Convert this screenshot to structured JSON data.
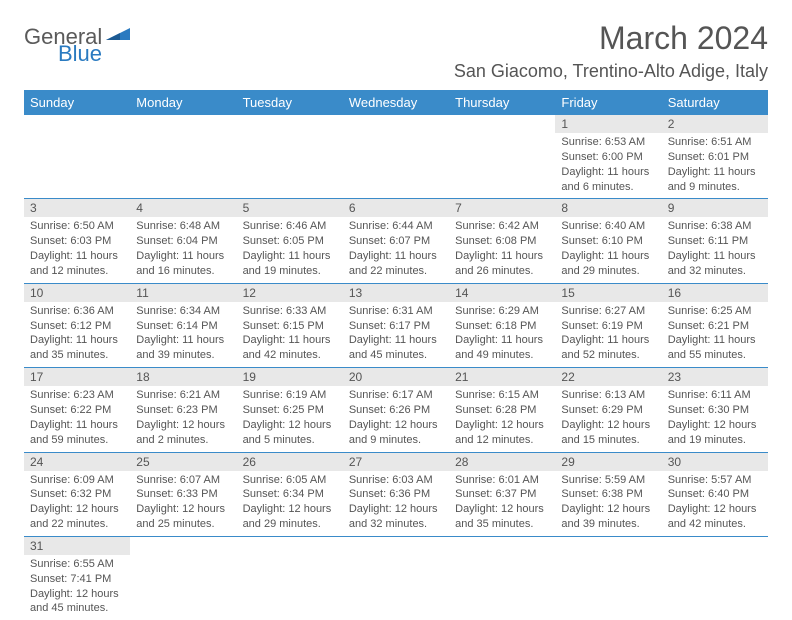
{
  "brand": {
    "general": "General",
    "blue": "Blue"
  },
  "title": "March 2024",
  "location": "San Giacomo, Trentino-Alto Adige, Italy",
  "colors": {
    "header_bg": "#3a8bc9",
    "header_text": "#ffffff",
    "daynum_bg": "#e8e8e8",
    "row_border": "#3a8bc9",
    "text": "#555555",
    "brand_blue": "#2a7ac0"
  },
  "weekdays": [
    "Sunday",
    "Monday",
    "Tuesday",
    "Wednesday",
    "Thursday",
    "Friday",
    "Saturday"
  ],
  "weeks": [
    [
      null,
      null,
      null,
      null,
      null,
      {
        "n": "1",
        "sr": "Sunrise: 6:53 AM",
        "ss": "Sunset: 6:00 PM",
        "d1": "Daylight: 11 hours",
        "d2": "and 6 minutes."
      },
      {
        "n": "2",
        "sr": "Sunrise: 6:51 AM",
        "ss": "Sunset: 6:01 PM",
        "d1": "Daylight: 11 hours",
        "d2": "and 9 minutes."
      }
    ],
    [
      {
        "n": "3",
        "sr": "Sunrise: 6:50 AM",
        "ss": "Sunset: 6:03 PM",
        "d1": "Daylight: 11 hours",
        "d2": "and 12 minutes."
      },
      {
        "n": "4",
        "sr": "Sunrise: 6:48 AM",
        "ss": "Sunset: 6:04 PM",
        "d1": "Daylight: 11 hours",
        "d2": "and 16 minutes."
      },
      {
        "n": "5",
        "sr": "Sunrise: 6:46 AM",
        "ss": "Sunset: 6:05 PM",
        "d1": "Daylight: 11 hours",
        "d2": "and 19 minutes."
      },
      {
        "n": "6",
        "sr": "Sunrise: 6:44 AM",
        "ss": "Sunset: 6:07 PM",
        "d1": "Daylight: 11 hours",
        "d2": "and 22 minutes."
      },
      {
        "n": "7",
        "sr": "Sunrise: 6:42 AM",
        "ss": "Sunset: 6:08 PM",
        "d1": "Daylight: 11 hours",
        "d2": "and 26 minutes."
      },
      {
        "n": "8",
        "sr": "Sunrise: 6:40 AM",
        "ss": "Sunset: 6:10 PM",
        "d1": "Daylight: 11 hours",
        "d2": "and 29 minutes."
      },
      {
        "n": "9",
        "sr": "Sunrise: 6:38 AM",
        "ss": "Sunset: 6:11 PM",
        "d1": "Daylight: 11 hours",
        "d2": "and 32 minutes."
      }
    ],
    [
      {
        "n": "10",
        "sr": "Sunrise: 6:36 AM",
        "ss": "Sunset: 6:12 PM",
        "d1": "Daylight: 11 hours",
        "d2": "and 35 minutes."
      },
      {
        "n": "11",
        "sr": "Sunrise: 6:34 AM",
        "ss": "Sunset: 6:14 PM",
        "d1": "Daylight: 11 hours",
        "d2": "and 39 minutes."
      },
      {
        "n": "12",
        "sr": "Sunrise: 6:33 AM",
        "ss": "Sunset: 6:15 PM",
        "d1": "Daylight: 11 hours",
        "d2": "and 42 minutes."
      },
      {
        "n": "13",
        "sr": "Sunrise: 6:31 AM",
        "ss": "Sunset: 6:17 PM",
        "d1": "Daylight: 11 hours",
        "d2": "and 45 minutes."
      },
      {
        "n": "14",
        "sr": "Sunrise: 6:29 AM",
        "ss": "Sunset: 6:18 PM",
        "d1": "Daylight: 11 hours",
        "d2": "and 49 minutes."
      },
      {
        "n": "15",
        "sr": "Sunrise: 6:27 AM",
        "ss": "Sunset: 6:19 PM",
        "d1": "Daylight: 11 hours",
        "d2": "and 52 minutes."
      },
      {
        "n": "16",
        "sr": "Sunrise: 6:25 AM",
        "ss": "Sunset: 6:21 PM",
        "d1": "Daylight: 11 hours",
        "d2": "and 55 minutes."
      }
    ],
    [
      {
        "n": "17",
        "sr": "Sunrise: 6:23 AM",
        "ss": "Sunset: 6:22 PM",
        "d1": "Daylight: 11 hours",
        "d2": "and 59 minutes."
      },
      {
        "n": "18",
        "sr": "Sunrise: 6:21 AM",
        "ss": "Sunset: 6:23 PM",
        "d1": "Daylight: 12 hours",
        "d2": "and 2 minutes."
      },
      {
        "n": "19",
        "sr": "Sunrise: 6:19 AM",
        "ss": "Sunset: 6:25 PM",
        "d1": "Daylight: 12 hours",
        "d2": "and 5 minutes."
      },
      {
        "n": "20",
        "sr": "Sunrise: 6:17 AM",
        "ss": "Sunset: 6:26 PM",
        "d1": "Daylight: 12 hours",
        "d2": "and 9 minutes."
      },
      {
        "n": "21",
        "sr": "Sunrise: 6:15 AM",
        "ss": "Sunset: 6:28 PM",
        "d1": "Daylight: 12 hours",
        "d2": "and 12 minutes."
      },
      {
        "n": "22",
        "sr": "Sunrise: 6:13 AM",
        "ss": "Sunset: 6:29 PM",
        "d1": "Daylight: 12 hours",
        "d2": "and 15 minutes."
      },
      {
        "n": "23",
        "sr": "Sunrise: 6:11 AM",
        "ss": "Sunset: 6:30 PM",
        "d1": "Daylight: 12 hours",
        "d2": "and 19 minutes."
      }
    ],
    [
      {
        "n": "24",
        "sr": "Sunrise: 6:09 AM",
        "ss": "Sunset: 6:32 PM",
        "d1": "Daylight: 12 hours",
        "d2": "and 22 minutes."
      },
      {
        "n": "25",
        "sr": "Sunrise: 6:07 AM",
        "ss": "Sunset: 6:33 PM",
        "d1": "Daylight: 12 hours",
        "d2": "and 25 minutes."
      },
      {
        "n": "26",
        "sr": "Sunrise: 6:05 AM",
        "ss": "Sunset: 6:34 PM",
        "d1": "Daylight: 12 hours",
        "d2": "and 29 minutes."
      },
      {
        "n": "27",
        "sr": "Sunrise: 6:03 AM",
        "ss": "Sunset: 6:36 PM",
        "d1": "Daylight: 12 hours",
        "d2": "and 32 minutes."
      },
      {
        "n": "28",
        "sr": "Sunrise: 6:01 AM",
        "ss": "Sunset: 6:37 PM",
        "d1": "Daylight: 12 hours",
        "d2": "and 35 minutes."
      },
      {
        "n": "29",
        "sr": "Sunrise: 5:59 AM",
        "ss": "Sunset: 6:38 PM",
        "d1": "Daylight: 12 hours",
        "d2": "and 39 minutes."
      },
      {
        "n": "30",
        "sr": "Sunrise: 5:57 AM",
        "ss": "Sunset: 6:40 PM",
        "d1": "Daylight: 12 hours",
        "d2": "and 42 minutes."
      }
    ],
    [
      {
        "n": "31",
        "sr": "Sunrise: 6:55 AM",
        "ss": "Sunset: 7:41 PM",
        "d1": "Daylight: 12 hours",
        "d2": "and 45 minutes."
      },
      null,
      null,
      null,
      null,
      null,
      null
    ]
  ]
}
